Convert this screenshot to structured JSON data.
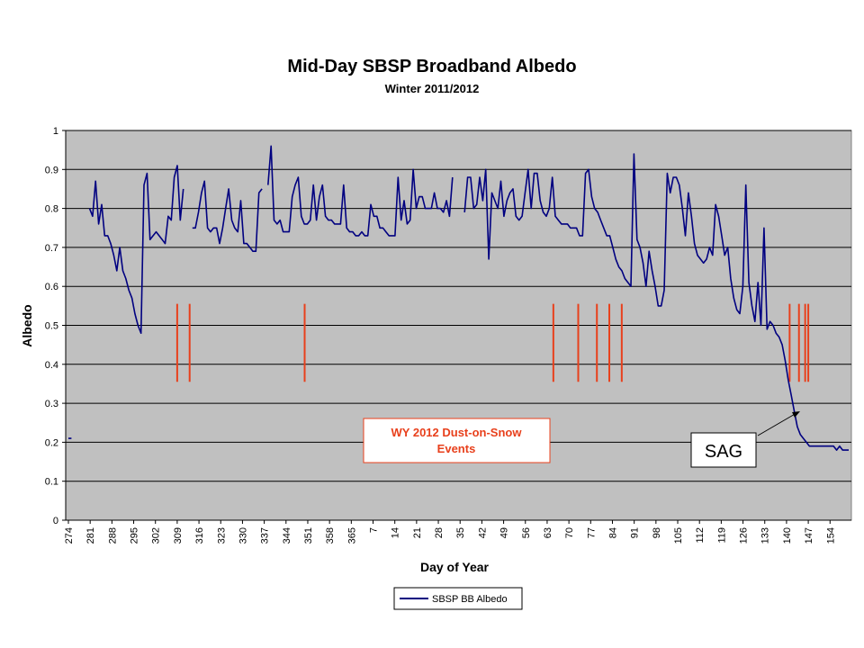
{
  "chart_data": {
    "type": "line",
    "title": "Mid-Day SBSP Broadband Albedo",
    "subtitle": "Winter 2011/2012",
    "xlabel": "Day of Year",
    "ylabel": "Albedo",
    "ylim": [
      0,
      1
    ],
    "y_ticks": [
      "0",
      "0.1",
      "0.2",
      "0.3",
      "0.4",
      "0.5",
      "0.6",
      "0.7",
      "0.8",
      "0.9",
      "1"
    ],
    "x_tick_labels": [
      "274",
      "281",
      "288",
      "295",
      "302",
      "309",
      "316",
      "323",
      "330",
      "337",
      "344",
      "351",
      "358",
      "365",
      "7",
      "14",
      "21",
      "28",
      "35",
      "42",
      "49",
      "56",
      "63",
      "70",
      "77",
      "84",
      "91",
      "98",
      "105",
      "112",
      "119",
      "126",
      "133",
      "140",
      "147",
      "154"
    ],
    "grid": "horizontal",
    "legend_position": "bottom",
    "series": [
      {
        "name": "SBSP BB Albedo",
        "color": "#000080",
        "values": [
          0.21,
          0.21,
          null,
          null,
          null,
          null,
          null,
          0.8,
          0.78,
          0.87,
          0.76,
          0.81,
          0.73,
          0.73,
          0.71,
          0.68,
          0.64,
          0.7,
          0.64,
          0.62,
          0.59,
          0.57,
          0.53,
          0.5,
          0.48,
          0.86,
          0.89,
          0.72,
          0.73,
          0.74,
          0.73,
          0.72,
          0.71,
          0.78,
          0.77,
          0.88,
          0.91,
          0.77,
          0.85,
          null,
          null,
          0.75,
          0.75,
          0.79,
          0.84,
          0.87,
          0.75,
          0.74,
          0.75,
          0.75,
          0.71,
          0.75,
          0.8,
          0.85,
          0.77,
          0.75,
          0.74,
          0.82,
          0.71,
          0.71,
          0.7,
          0.69,
          0.69,
          0.84,
          0.85,
          null,
          0.86,
          0.96,
          0.77,
          0.76,
          0.77,
          0.74,
          0.74,
          0.74,
          0.83,
          0.86,
          0.88,
          0.78,
          0.76,
          0.76,
          0.77,
          0.86,
          0.77,
          0.83,
          0.86,
          0.78,
          0.77,
          0.77,
          0.76,
          0.76,
          0.76,
          0.86,
          0.75,
          0.74,
          0.74,
          0.73,
          0.73,
          0.74,
          0.73,
          0.73,
          0.81,
          0.78,
          0.78,
          0.75,
          0.75,
          0.74,
          0.73,
          0.73,
          0.73,
          0.88,
          0.77,
          0.82,
          0.76,
          0.77,
          0.9,
          0.8,
          0.83,
          0.83,
          0.8,
          0.8,
          0.8,
          0.84,
          0.8,
          0.8,
          0.79,
          0.82,
          0.78,
          0.88,
          null,
          null,
          null,
          0.79,
          0.88,
          0.88,
          0.8,
          0.81,
          0.88,
          0.82,
          0.9,
          0.67,
          0.84,
          0.82,
          0.8,
          0.87,
          0.78,
          0.82,
          0.84,
          0.85,
          0.78,
          0.77,
          0.78,
          0.84,
          0.9,
          0.8,
          0.89,
          0.89,
          0.82,
          0.79,
          0.78,
          0.8,
          0.88,
          0.78,
          0.77,
          0.76,
          0.76,
          0.76,
          0.75,
          0.75,
          0.75,
          0.73,
          0.73,
          0.89,
          0.9,
          0.83,
          0.8,
          0.79,
          0.77,
          0.75,
          0.73,
          0.73,
          0.7,
          0.67,
          0.65,
          0.64,
          0.62,
          0.61,
          0.6,
          0.94,
          0.72,
          0.7,
          0.66,
          0.6,
          0.69,
          0.64,
          0.6,
          0.55,
          0.55,
          0.59,
          0.89,
          0.84,
          0.88,
          0.88,
          0.86,
          0.8,
          0.73,
          0.84,
          0.78,
          0.71,
          0.68,
          0.67,
          0.66,
          0.67,
          0.7,
          0.68,
          0.81,
          0.78,
          0.73,
          0.68,
          0.7,
          0.62,
          0.57,
          0.54,
          0.53,
          0.6,
          0.86,
          0.61,
          0.55,
          0.51,
          0.61,
          0.5,
          0.75,
          0.49,
          0.51,
          0.5,
          0.48,
          0.47,
          0.45,
          0.41,
          0.36,
          0.32,
          0.28,
          0.24,
          0.22,
          0.21,
          0.2,
          0.19,
          0.19,
          0.19,
          0.19,
          0.19,
          0.19,
          0.19,
          0.19,
          0.19,
          0.18,
          0.19,
          0.18,
          0.18,
          0.18
        ]
      }
    ],
    "dust_event_color": "#e8401c",
    "dust_event_markers": [
      309,
      313,
      350,
      64,
      72,
      78,
      82,
      86,
      140,
      143,
      145,
      146
    ],
    "annotations": {
      "dust_note_line1": "WY 2012 Dust-on-Snow",
      "dust_note_line2": "Events",
      "sag_label": "SAG"
    }
  }
}
